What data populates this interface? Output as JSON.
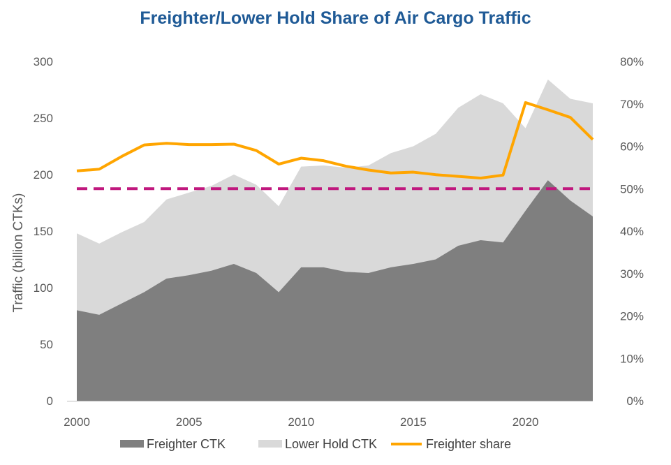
{
  "chart_data": {
    "type": "area",
    "title": "Freighter/Lower Hold Share of Air Cargo Traffic",
    "ylabel": "Traffic (billion CTKs)",
    "ylim": [
      0,
      300
    ],
    "y2lim": [
      0,
      0.8
    ],
    "x": [
      2000,
      2001,
      2002,
      2003,
      2004,
      2005,
      2006,
      2007,
      2008,
      2009,
      2010,
      2011,
      2012,
      2013,
      2014,
      2015,
      2016,
      2017,
      2018,
      2019,
      2020,
      2021,
      2022,
      2023
    ],
    "x_ticks": [
      "2000",
      "2005",
      "2010",
      "2015",
      "2020"
    ],
    "y_ticks": [
      "0",
      "50",
      "100",
      "150",
      "200",
      "250",
      "300"
    ],
    "y2_ticks": [
      "0%",
      "10%",
      "20%",
      "30%",
      "40%",
      "50%",
      "60%",
      "70%",
      "80%"
    ],
    "series": [
      {
        "name": "Freighter CTK",
        "kind": "stacked-area",
        "color": "#7f7f7f",
        "values": [
          80,
          76,
          86,
          96,
          108,
          111,
          115,
          121,
          113,
          96,
          118,
          118,
          114,
          113,
          118,
          121,
          125,
          137,
          142,
          140,
          168,
          195,
          177,
          163
        ]
      },
      {
        "name": "Lower Hold CTK",
        "kind": "stacked-area",
        "color": "#d9d9d9",
        "values": [
          68,
          63,
          63,
          62,
          70,
          73,
          75,
          79,
          78,
          76,
          89,
          90,
          92,
          95,
          101,
          104,
          111,
          122,
          129,
          123,
          73,
          89,
          90,
          100
        ]
      },
      {
        "name": "Freighter share",
        "kind": "line",
        "axis": "right",
        "color": "#ffa500",
        "values": [
          0.542,
          0.546,
          0.576,
          0.603,
          0.607,
          0.604,
          0.604,
          0.605,
          0.59,
          0.558,
          0.572,
          0.566,
          0.553,
          0.544,
          0.537,
          0.539,
          0.533,
          0.529,
          0.525,
          0.532,
          0.703,
          0.686,
          0.668,
          0.616
        ]
      }
    ],
    "reference_line": {
      "axis": "right",
      "value": 0.5,
      "color": "#c0187e",
      "style": "dashed"
    },
    "legend": {
      "position": "bottom",
      "items": [
        {
          "label": "Freighter CTK",
          "swatch": "box",
          "color": "#7f7f7f"
        },
        {
          "label": "Lower Hold CTK",
          "swatch": "box",
          "color": "#d9d9d9"
        },
        {
          "label": "Freighter share",
          "swatch": "line",
          "color": "#ffa500"
        }
      ]
    },
    "grid": false
  }
}
